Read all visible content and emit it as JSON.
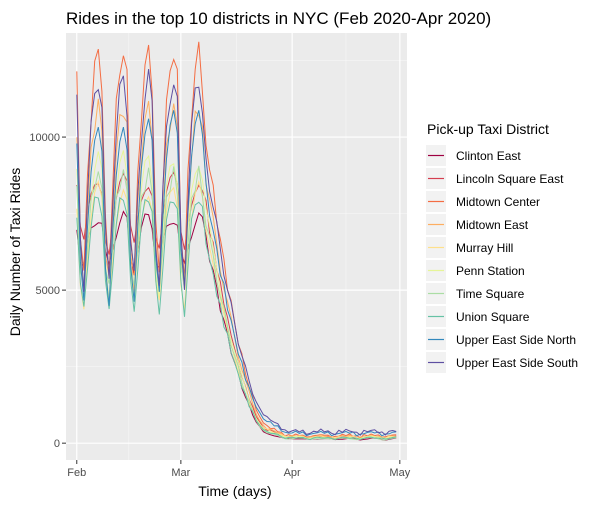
{
  "chart_data": {
    "type": "line",
    "title": "Rides in the top 10 districts in NYC (Feb 2020-Apr 2020)",
    "xlabel": "Time (days)",
    "ylabel": "Daily Number of Taxi Rides",
    "x_start": "2020-02-01",
    "x_end": "2020-04-30",
    "xlim": [
      "2020-01-29",
      "2020-05-03"
    ],
    "ylim": [
      -550,
      13400
    ],
    "x_ticks": [
      {
        "date": "2020-02-01",
        "label": "Feb"
      },
      {
        "date": "2020-03-01",
        "label": "Mar"
      },
      {
        "date": "2020-04-01",
        "label": "Apr"
      },
      {
        "date": "2020-05-01",
        "label": "May"
      }
    ],
    "y_ticks": [
      {
        "value": 0,
        "label": "0"
      },
      {
        "value": 5000,
        "label": "5000"
      },
      {
        "value": 10000,
        "label": "10000"
      }
    ],
    "grid": true,
    "panel_background": "#ebebeb",
    "legend": {
      "title": "Pick-up Taxi District",
      "position": "right"
    },
    "series": [
      {
        "name": "Clinton East",
        "color": "#9e0142",
        "peak": 7400,
        "trough": 5700,
        "low": 140
      },
      {
        "name": "Lincoln Square East",
        "color": "#d53e4f",
        "peak": 8600,
        "trough": 6400,
        "low": 200
      },
      {
        "name": "Midtown Center",
        "color": "#f46d43",
        "peak": 12800,
        "trough": 5500,
        "low": 250
      },
      {
        "name": "Midtown East",
        "color": "#fdae61",
        "peak": 11000,
        "trough": 5100,
        "low": 220
      },
      {
        "name": "Murray Hill",
        "color": "#fee08b",
        "peak": 8300,
        "trough": 4600,
        "low": 200
      },
      {
        "name": "Penn Station",
        "color": "#e6f598",
        "peak": 9300,
        "trough": 4900,
        "low": 180
      },
      {
        "name": "Time Square",
        "color": "#abdda4",
        "peak": 8800,
        "trough": 5000,
        "low": 150
      },
      {
        "name": "Union Square",
        "color": "#66c2a5",
        "peak": 8100,
        "trough": 4300,
        "low": 170
      },
      {
        "name": "Upper East Side North",
        "color": "#3288bd",
        "peak": 10600,
        "trough": 4800,
        "low": 330
      },
      {
        "name": "Upper East Side South",
        "color": "#5e4fa2",
        "peak": 11900,
        "trough": 5300,
        "low": 380
      }
    ]
  }
}
